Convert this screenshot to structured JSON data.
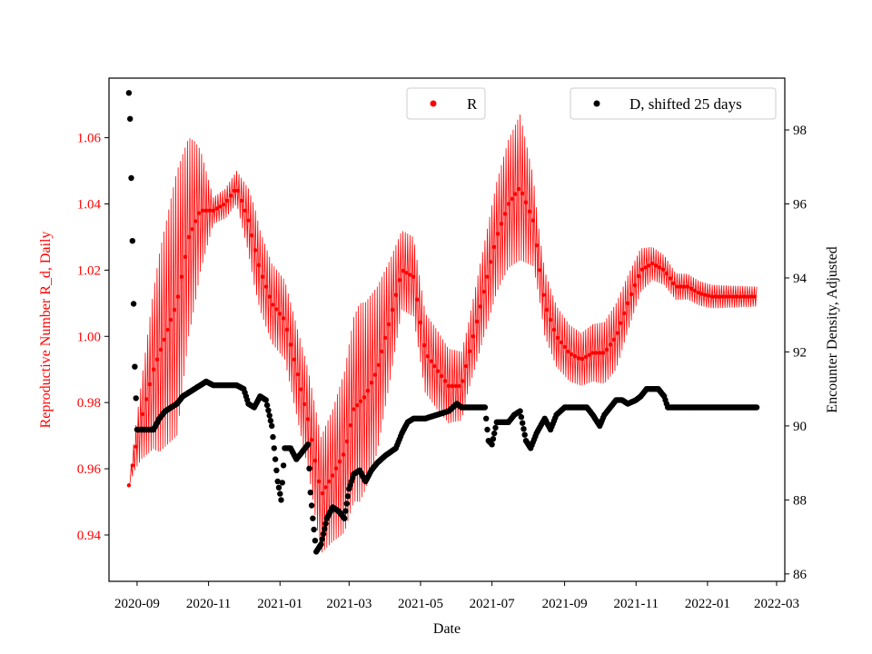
{
  "chart_data": {
    "type": "line",
    "title": "",
    "xlabel": "Date",
    "ylabel_left": "Reproductive Number R_d, Daily",
    "ylabel_right": "Encounter Density, Adjusted",
    "x_tick_labels": [
      "2020-09",
      "2020-11",
      "2021-01",
      "2021-03",
      "2021-05",
      "2021-07",
      "2021-09",
      "2021-11",
      "2022-01",
      "2022-03"
    ],
    "x_range": [
      "2020-08-08",
      "2022-03-08"
    ],
    "y_left_range": [
      0.926,
      1.078
    ],
    "y_left_ticks": [
      "0.94",
      "0.96",
      "0.98",
      "1.00",
      "1.02",
      "1.04",
      "1.06"
    ],
    "y_right_range": [
      85.8,
      99.4
    ],
    "y_right_ticks": [
      "86",
      "88",
      "90",
      "92",
      "94",
      "96",
      "98"
    ],
    "colors": {
      "R": "#ff0000",
      "D": "#000000",
      "left_axis_text": "#ff0000"
    },
    "legend": [
      {
        "label": "R",
        "color": "#ff0000",
        "placement": "top-center"
      },
      {
        "label": "D, shifted 25 days",
        "color": "#000000",
        "placement": "top-right"
      }
    ],
    "series": [
      {
        "name": "R",
        "axis": "left",
        "style": "oscillating line with point markers",
        "trend": [
          [
            "2020-08-25",
            0.955
          ],
          [
            "2020-08-30",
            0.965
          ],
          [
            "2020-09-05",
            0.975
          ],
          [
            "2020-09-15",
            0.99
          ],
          [
            "2020-09-25",
            1.0
          ],
          [
            "2020-10-05",
            1.01
          ],
          [
            "2020-10-15",
            1.03
          ],
          [
            "2020-10-25",
            1.038
          ],
          [
            "2020-11-05",
            1.038
          ],
          [
            "2020-11-15",
            1.04
          ],
          [
            "2020-11-25",
            1.045
          ],
          [
            "2020-12-05",
            1.035
          ],
          [
            "2020-12-15",
            1.02
          ],
          [
            "2020-12-25",
            1.01
          ],
          [
            "2021-01-05",
            1.005
          ],
          [
            "2021-01-15",
            0.99
          ],
          [
            "2021-01-25",
            0.975
          ],
          [
            "2021-02-05",
            0.952
          ],
          [
            "2021-02-15",
            0.958
          ],
          [
            "2021-02-25",
            0.965
          ],
          [
            "2021-03-05",
            0.978
          ],
          [
            "2021-03-15",
            0.982
          ],
          [
            "2021-03-25",
            0.99
          ],
          [
            "2021-04-05",
            1.005
          ],
          [
            "2021-04-15",
            1.02
          ],
          [
            "2021-04-25",
            1.018
          ],
          [
            "2021-05-05",
            0.995
          ],
          [
            "2021-05-15",
            0.99
          ],
          [
            "2021-05-25",
            0.985
          ],
          [
            "2021-06-05",
            0.985
          ],
          [
            "2021-06-15",
            1.0
          ],
          [
            "2021-06-25",
            1.015
          ],
          [
            "2021-07-05",
            1.03
          ],
          [
            "2021-07-15",
            1.04
          ],
          [
            "2021-07-25",
            1.045
          ],
          [
            "2021-08-05",
            1.035
          ],
          [
            "2021-08-15",
            1.01
          ],
          [
            "2021-08-25",
            1.0
          ],
          [
            "2021-09-05",
            0.995
          ],
          [
            "2021-09-15",
            0.993
          ],
          [
            "2021-09-25",
            0.995
          ],
          [
            "2021-10-05",
            0.995
          ],
          [
            "2021-10-15",
            1.0
          ],
          [
            "2021-10-25",
            1.01
          ],
          [
            "2021-11-05",
            1.02
          ],
          [
            "2021-11-15",
            1.022
          ],
          [
            "2021-11-25",
            1.02
          ],
          [
            "2021-12-05",
            1.015
          ],
          [
            "2021-12-15",
            1.015
          ],
          [
            "2021-12-25",
            1.013
          ],
          [
            "2022-01-05",
            1.012
          ],
          [
            "2022-01-15",
            1.012
          ],
          [
            "2022-01-25",
            1.012
          ],
          [
            "2022-02-05",
            1.012
          ],
          [
            "2022-02-12",
            1.012
          ]
        ],
        "amplitude": [
          [
            "2020-08-25",
            0.0
          ],
          [
            "2020-09-05",
            0.012
          ],
          [
            "2020-09-20",
            0.03
          ],
          [
            "2020-10-05",
            0.04
          ],
          [
            "2020-10-20",
            0.025
          ],
          [
            "2020-11-05",
            0.004
          ],
          [
            "2020-11-25",
            0.005
          ],
          [
            "2020-12-10",
            0.012
          ],
          [
            "2021-01-05",
            0.012
          ],
          [
            "2021-01-25",
            0.015
          ],
          [
            "2021-02-15",
            0.02
          ],
          [
            "2021-03-10",
            0.03
          ],
          [
            "2021-03-25",
            0.025
          ],
          [
            "2021-04-15",
            0.012
          ],
          [
            "2021-05-15",
            0.012
          ],
          [
            "2021-06-10",
            0.01
          ],
          [
            "2021-07-10",
            0.018
          ],
          [
            "2021-07-25",
            0.022
          ],
          [
            "2021-08-10",
            0.01
          ],
          [
            "2021-09-15",
            0.008
          ],
          [
            "2021-10-15",
            0.01
          ],
          [
            "2021-11-15",
            0.005
          ],
          [
            "2021-12-05",
            0.004
          ],
          [
            "2022-02-12",
            0.003
          ]
        ]
      },
      {
        "name": "D, shifted 25 days",
        "axis": "right",
        "style": "scatter",
        "points": [
          [
            "2020-08-25",
            99.0
          ],
          [
            "2020-08-26",
            98.3
          ],
          [
            "2020-08-27",
            96.7
          ],
          [
            "2020-08-28",
            95.0
          ],
          [
            "2020-08-29",
            93.3
          ],
          [
            "2020-08-30",
            91.6
          ],
          [
            "2020-09-01",
            89.9
          ],
          [
            "2020-09-05",
            89.9
          ],
          [
            "2020-09-10",
            89.9
          ],
          [
            "2020-09-15",
            89.9
          ],
          [
            "2020-09-20",
            90.2
          ],
          [
            "2020-09-25",
            90.4
          ],
          [
            "2020-09-30",
            90.5
          ],
          [
            "2020-10-05",
            90.6
          ],
          [
            "2020-10-10",
            90.8
          ],
          [
            "2020-10-15",
            90.9
          ],
          [
            "2020-10-20",
            91.0
          ],
          [
            "2020-10-25",
            91.1
          ],
          [
            "2020-10-30",
            91.2
          ],
          [
            "2020-11-05",
            91.1
          ],
          [
            "2020-11-15",
            91.1
          ],
          [
            "2020-11-25",
            91.1
          ],
          [
            "2020-12-01",
            91.0
          ],
          [
            "2020-12-05",
            90.6
          ],
          [
            "2020-12-10",
            90.5
          ],
          [
            "2020-12-15",
            90.8
          ],
          [
            "2020-12-20",
            90.7
          ],
          [
            "2020-12-25",
            90.0
          ],
          [
            "2020-12-28",
            89.1
          ],
          [
            "2020-12-30",
            88.5
          ],
          [
            "2021-01-02",
            88.0
          ],
          [
            "2021-01-05",
            89.4
          ],
          [
            "2021-01-10",
            89.4
          ],
          [
            "2021-01-15",
            89.1
          ],
          [
            "2021-01-20",
            89.3
          ],
          [
            "2021-01-25",
            89.5
          ],
          [
            "2021-01-27",
            88.2
          ],
          [
            "2021-01-29",
            87.5
          ],
          [
            "2021-02-01",
            86.6
          ],
          [
            "2021-02-05",
            86.8
          ],
          [
            "2021-02-10",
            87.5
          ],
          [
            "2021-02-15",
            87.8
          ],
          [
            "2021-02-20",
            87.7
          ],
          [
            "2021-02-25",
            87.5
          ],
          [
            "2021-03-01",
            88.3
          ],
          [
            "2021-03-05",
            88.7
          ],
          [
            "2021-03-10",
            88.8
          ],
          [
            "2021-03-15",
            88.5
          ],
          [
            "2021-03-20",
            88.8
          ],
          [
            "2021-03-25",
            89.0
          ],
          [
            "2021-04-01",
            89.2
          ],
          [
            "2021-04-10",
            89.4
          ],
          [
            "2021-04-15",
            89.8
          ],
          [
            "2021-04-20",
            90.1
          ],
          [
            "2021-04-25",
            90.2
          ],
          [
            "2021-05-05",
            90.2
          ],
          [
            "2021-05-15",
            90.3
          ],
          [
            "2021-05-25",
            90.4
          ],
          [
            "2021-06-01",
            90.6
          ],
          [
            "2021-06-05",
            90.5
          ],
          [
            "2021-06-15",
            90.5
          ],
          [
            "2021-06-25",
            90.5
          ],
          [
            "2021-06-28",
            89.6
          ],
          [
            "2021-07-01",
            89.5
          ],
          [
            "2021-07-05",
            90.1
          ],
          [
            "2021-07-10",
            90.1
          ],
          [
            "2021-07-15",
            90.1
          ],
          [
            "2021-07-20",
            90.3
          ],
          [
            "2021-07-25",
            90.4
          ],
          [
            "2021-07-30",
            89.6
          ],
          [
            "2021-08-03",
            89.4
          ],
          [
            "2021-08-08",
            89.8
          ],
          [
            "2021-08-15",
            90.2
          ],
          [
            "2021-08-20",
            89.9
          ],
          [
            "2021-08-25",
            90.3
          ],
          [
            "2021-09-01",
            90.5
          ],
          [
            "2021-09-10",
            90.5
          ],
          [
            "2021-09-20",
            90.5
          ],
          [
            "2021-09-25",
            90.3
          ],
          [
            "2021-10-01",
            90.0
          ],
          [
            "2021-10-05",
            90.3
          ],
          [
            "2021-10-10",
            90.5
          ],
          [
            "2021-10-15",
            90.7
          ],
          [
            "2021-10-20",
            90.7
          ],
          [
            "2021-10-25",
            90.6
          ],
          [
            "2021-11-01",
            90.7
          ],
          [
            "2021-11-05",
            90.8
          ],
          [
            "2021-11-10",
            91.0
          ],
          [
            "2021-11-15",
            91.0
          ],
          [
            "2021-11-20",
            91.0
          ],
          [
            "2021-11-25",
            90.8
          ],
          [
            "2021-11-28",
            90.5
          ],
          [
            "2021-12-05",
            90.5
          ],
          [
            "2021-12-15",
            90.5
          ],
          [
            "2021-12-25",
            90.5
          ],
          [
            "2022-01-05",
            90.5
          ],
          [
            "2022-01-15",
            90.5
          ],
          [
            "2022-01-25",
            90.5
          ],
          [
            "2022-02-05",
            90.5
          ],
          [
            "2022-02-12",
            90.5
          ]
        ]
      }
    ],
    "grid": false
  }
}
